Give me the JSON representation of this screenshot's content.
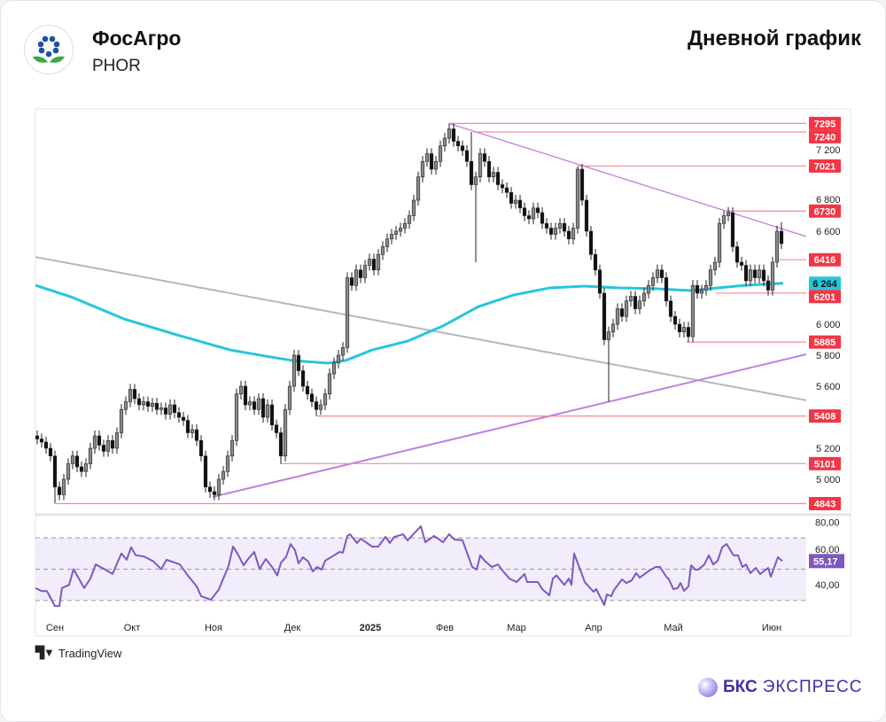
{
  "header": {
    "company": "ФосАгро",
    "ticker": "PHOR",
    "chart_title": "Дневной график"
  },
  "footer": {
    "tradingview": "TradingView",
    "brand_bold": "БКС",
    "brand_light": "ЭКСПРЕСС"
  },
  "colors": {
    "up": "#8a8a8a",
    "down": "#111111",
    "ma": "#26c6da",
    "rsi": "#7e57c2",
    "level": "#f23645",
    "trend_gray": "#b8b8b8",
    "trend_violet": "#c47fdc"
  },
  "chart_data": {
    "type": "candlestick",
    "title": "Дневной график",
    "x_tick_labels": [
      {
        "label": "Сен",
        "idx": 4
      },
      {
        "label": "Окт",
        "idx": 21.4
      },
      {
        "label": "Ноя",
        "idx": 39.8
      },
      {
        "label": "Дек",
        "idx": 57.6
      },
      {
        "label": "2025",
        "idx": 75.2,
        "bold": true
      },
      {
        "label": "Фев",
        "idx": 92
      },
      {
        "label": "Мар",
        "idx": 108.2
      },
      {
        "label": "Апр",
        "idx": 125.6
      },
      {
        "label": "Май",
        "idx": 143.6
      },
      {
        "label": "Июн",
        "idx": 165.8
      }
    ],
    "price_ylim": [
      4700,
      7350
    ],
    "y_ticks": [
      {
        "v": 7200,
        "t": "7 200"
      },
      {
        "v": 6800,
        "t": "6 800"
      },
      {
        "v": 6600,
        "t": "6 600"
      },
      {
        "v": 6000,
        "t": "6 000"
      },
      {
        "v": 5800,
        "t": "5 800"
      },
      {
        "v": 5600,
        "t": "5 600"
      },
      {
        "v": 5200,
        "t": "5 200"
      },
      {
        "v": 5000,
        "t": "5 000"
      }
    ],
    "closes": [
      5260,
      5240,
      5200,
      5150,
      4950,
      4900,
      5000,
      5100,
      5150,
      5080,
      5050,
      5100,
      5200,
      5280,
      5220,
      5180,
      5250,
      5200,
      5300,
      5450,
      5500,
      5580,
      5520,
      5480,
      5500,
      5470,
      5490,
      5450,
      5460,
      5420,
      5480,
      5430,
      5400,
      5380,
      5300,
      5320,
      5250,
      5150,
      4950,
      4920,
      4900,
      5000,
      5050,
      5150,
      5250,
      5550,
      5600,
      5480,
      5500,
      5450,
      5520,
      5400,
      5480,
      5350,
      5300,
      5150,
      5450,
      5600,
      5800,
      5700,
      5600,
      5550,
      5500,
      5450,
      5480,
      5550,
      5680,
      5750,
      5800,
      5850,
      6300,
      6250,
      6350,
      6300,
      6380,
      6420,
      6350,
      6450,
      6500,
      6550,
      6580,
      6600,
      6620,
      6650,
      6700,
      6800,
      6950,
      7050,
      7100,
      7000,
      7050,
      7150,
      7200,
      7260,
      7180,
      7150,
      7120,
      7050,
      6900,
      6950,
      7100,
      7050,
      6950,
      6980,
      6900,
      6880,
      6850,
      6780,
      6800,
      6750,
      6700,
      6680,
      6750,
      6720,
      6650,
      6620,
      6580,
      6620,
      6650,
      6600,
      6550,
      6620,
      7000,
      6800,
      6600,
      6450,
      6350,
      6200,
      5900,
      5950,
      6000,
      6100,
      6050,
      6150,
      6180,
      6100,
      6150,
      6200,
      6250,
      6300,
      6350,
      6300,
      6150,
      6050,
      6000,
      5950,
      5980,
      5920,
      6250,
      6200,
      6220,
      6250,
      6350,
      6400,
      6650,
      6700,
      6720,
      6500,
      6400,
      6380,
      6280,
      6350,
      6300,
      6350,
      6280,
      6220,
      6400,
      6600,
      6520
    ],
    "wick_extremes": [
      {
        "idx": 4,
        "low": 4843
      },
      {
        "idx": 93,
        "high": 7295
      },
      {
        "idx": 99,
        "low": 6400
      },
      {
        "idx": 98,
        "high": 7240
      },
      {
        "idx": 129,
        "low": 5500
      },
      {
        "idx": 122,
        "high": 7021
      },
      {
        "idx": 155,
        "high": 6730
      },
      {
        "idx": 147,
        "low": 5885
      },
      {
        "idx": 39,
        "low": 4880
      },
      {
        "idx": 55,
        "low": 5101
      },
      {
        "idx": 63,
        "low": 5408
      },
      {
        "idx": 168,
        "high": 6660
      }
    ],
    "ma": {
      "name": "MA",
      "last_label": "6 264",
      "points": [
        [
          -0.4,
          6251
        ],
        [
          7.6,
          6177
        ],
        [
          19.6,
          6034
        ],
        [
          31.6,
          5931
        ],
        [
          43.6,
          5834
        ],
        [
          51.6,
          5794
        ],
        [
          57.6,
          5766
        ],
        [
          65.6,
          5749
        ],
        [
          69.6,
          5766
        ],
        [
          75.6,
          5834
        ],
        [
          83.6,
          5891
        ],
        [
          91.6,
          5989
        ],
        [
          99.6,
          6114
        ],
        [
          107.6,
          6189
        ],
        [
          115.6,
          6234
        ],
        [
          123.6,
          6246
        ],
        [
          131.6,
          6234
        ],
        [
          139.6,
          6229
        ],
        [
          147.6,
          6217
        ],
        [
          153.6,
          6234
        ],
        [
          159.6,
          6251
        ],
        [
          168.4,
          6264
        ]
      ]
    },
    "levels": [
      {
        "v": 7295,
        "from": 93,
        "t": "7295"
      },
      {
        "v": 7240,
        "from": 98.6,
        "t": "7240"
      },
      {
        "v": 7021,
        "from": 122.2,
        "t": "7021"
      },
      {
        "v": 6730,
        "from": 155.6,
        "t": "6730"
      },
      {
        "v": 6416,
        "from": 167.6,
        "t": "6416"
      },
      {
        "v": 6201,
        "from": 153.2,
        "t": "6201"
      },
      {
        "v": 5885,
        "from": 146.6,
        "t": "5885"
      },
      {
        "v": 5408,
        "from": 63,
        "t": "5408"
      },
      {
        "v": 5101,
        "from": 54.8,
        "t": "5101"
      },
      {
        "v": 4843,
        "from": 4.2,
        "t": "4843"
      }
    ],
    "trendlines": [
      {
        "name": "gray-trendline",
        "from": [
          -0.4,
          6434
        ],
        "to": [
          173.6,
          5509
        ],
        "color": "trend_gray"
      },
      {
        "name": "support-trendline",
        "from": [
          39.6,
          4886
        ],
        "to": [
          173.6,
          5806
        ],
        "color": "trend_violet"
      },
      {
        "name": "resistance-trendline",
        "from": [
          93,
          7295
        ],
        "to": [
          173.6,
          6566
        ],
        "color": "trend_violet"
      }
    ],
    "rsi": {
      "ylim": [
        20,
        85
      ],
      "ticks": [
        {
          "v": 80,
          "t": "80,00"
        },
        {
          "v": 60,
          "t": "60,00"
        },
        {
          "v": 40,
          "t": "40,00"
        }
      ],
      "bands": [
        30,
        50,
        70
      ],
      "last_label": "55,17",
      "points": [
        [
          -0.4,
          38
        ],
        [
          1,
          36
        ],
        [
          2.2,
          36
        ],
        [
          4,
          26.5
        ],
        [
          5,
          26.5
        ],
        [
          5.6,
          38
        ],
        [
          7.2,
          40
        ],
        [
          8.2,
          50
        ],
        [
          10.6,
          38
        ],
        [
          12,
          44
        ],
        [
          13.2,
          53
        ],
        [
          15.2,
          50
        ],
        [
          17,
          47
        ],
        [
          19,
          60
        ],
        [
          20.2,
          56
        ],
        [
          21.2,
          64
        ],
        [
          22.2,
          59
        ],
        [
          24.2,
          58
        ],
        [
          26.2,
          55
        ],
        [
          28,
          50
        ],
        [
          29.2,
          56
        ],
        [
          32.2,
          53
        ],
        [
          34,
          46
        ],
        [
          36,
          39
        ],
        [
          37,
          32.8
        ],
        [
          39.2,
          30.5
        ],
        [
          41,
          37
        ],
        [
          42,
          44
        ],
        [
          43.2,
          52
        ],
        [
          44.2,
          64.4
        ],
        [
          45.2,
          60
        ],
        [
          46.6,
          52.5
        ],
        [
          47.6,
          56.5
        ],
        [
          49,
          61
        ],
        [
          50.2,
          50
        ],
        [
          51.6,
          56.5
        ],
        [
          53,
          51.4
        ],
        [
          54.2,
          46
        ],
        [
          55,
          54
        ],
        [
          56.2,
          58
        ],
        [
          57.2,
          66
        ],
        [
          58.2,
          62
        ],
        [
          59,
          53.7
        ],
        [
          60,
          57.6
        ],
        [
          61.2,
          54.8
        ],
        [
          62.2,
          48.6
        ],
        [
          63.2,
          51.4
        ],
        [
          64.2,
          49.7
        ],
        [
          65,
          55.4
        ],
        [
          67,
          58.8
        ],
        [
          68.2,
          61
        ],
        [
          69,
          60.5
        ],
        [
          70,
          71.2
        ],
        [
          70.6,
          72.3
        ],
        [
          72.2,
          66.7
        ],
        [
          73,
          69.5
        ],
        [
          74.2,
          67.2
        ],
        [
          75.6,
          64.4
        ],
        [
          77,
          64.4
        ],
        [
          78.6,
          70.6
        ],
        [
          79.6,
          66.7
        ],
        [
          80.6,
          70.6
        ],
        [
          82.6,
          72.3
        ],
        [
          83.6,
          68.4
        ],
        [
          86.6,
          77.4
        ],
        [
          87.6,
          67.2
        ],
        [
          89.6,
          71.2
        ],
        [
          91.6,
          67.2
        ],
        [
          93,
          72.3
        ],
        [
          94.2,
          68.9
        ],
        [
          96,
          68.4
        ],
        [
          98.2,
          51.4
        ],
        [
          99.2,
          49.7
        ],
        [
          100,
          58.8
        ],
        [
          101,
          55.4
        ],
        [
          102.6,
          51.4
        ],
        [
          104,
          53
        ],
        [
          105.2,
          48.6
        ],
        [
          106.6,
          44
        ],
        [
          108.2,
          41.8
        ],
        [
          110,
          46.9
        ],
        [
          110.6,
          41.8
        ],
        [
          113,
          41.8
        ],
        [
          114,
          37.3
        ],
        [
          115.6,
          33.3
        ],
        [
          116.4,
          44
        ],
        [
          117.2,
          46
        ],
        [
          119,
          40
        ],
        [
          120,
          44
        ],
        [
          120.6,
          40
        ],
        [
          121.2,
          60
        ],
        [
          123.6,
          41.8
        ],
        [
          125.6,
          35.6
        ],
        [
          126.2,
          37.3
        ],
        [
          128,
          27.1
        ],
        [
          128.6,
          33.9
        ],
        [
          129.6,
          32.8
        ],
        [
          130.2,
          36.7
        ],
        [
          132,
          43.5
        ],
        [
          133,
          41.2
        ],
        [
          134.2,
          42.9
        ],
        [
          135.2,
          47.5
        ],
        [
          136,
          44.6
        ],
        [
          138.2,
          49.2
        ],
        [
          139.6,
          51.4
        ],
        [
          140.6,
          51.4
        ],
        [
          142,
          45.2
        ],
        [
          142.6,
          43.5
        ],
        [
          143.6,
          37.3
        ],
        [
          144.6,
          38
        ],
        [
          145.2,
          41.2
        ],
        [
          146,
          36.2
        ],
        [
          147,
          39
        ],
        [
          147.6,
          52.5
        ],
        [
          148.6,
          49.7
        ],
        [
          149.2,
          49.7
        ],
        [
          150.6,
          53
        ],
        [
          151.6,
          58.8
        ],
        [
          152.6,
          53
        ],
        [
          153.6,
          55.4
        ],
        [
          154.6,
          63.8
        ],
        [
          155.6,
          66.1
        ],
        [
          157.2,
          58.8
        ],
        [
          158.2,
          58.8
        ],
        [
          159.2,
          51.4
        ],
        [
          160,
          53
        ],
        [
          161,
          47.5
        ],
        [
          162.2,
          50.8
        ],
        [
          163.2,
          46.9
        ],
        [
          165,
          50.8
        ],
        [
          165.6,
          45.2
        ],
        [
          167.2,
          57.6
        ],
        [
          168.2,
          55.17
        ]
      ]
    }
  }
}
